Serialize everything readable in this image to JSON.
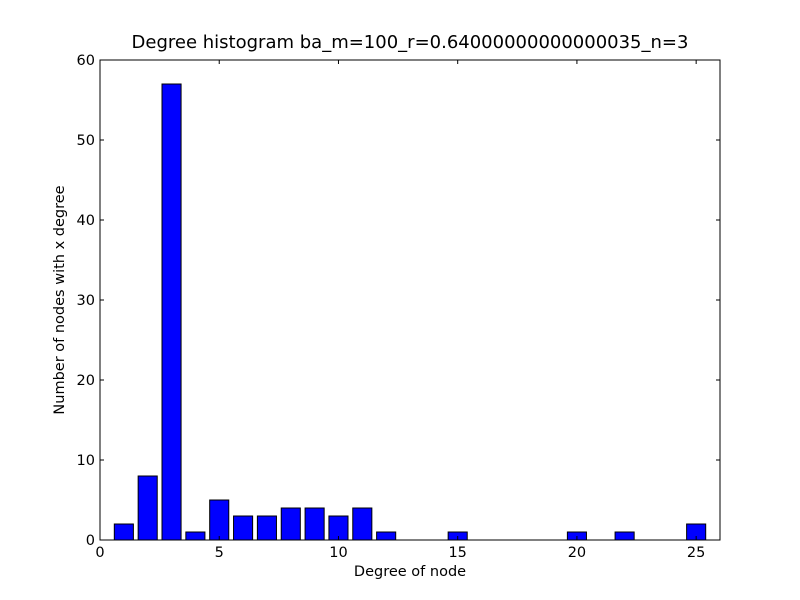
{
  "chart_data": {
    "type": "bar",
    "title": "Degree histogram ba_m=100_r=0.64000000000000035_n=3",
    "xlabel": "Degree of node",
    "ylabel": "Number of nodes with x degree",
    "xlim": [
      0,
      26
    ],
    "ylim": [
      0,
      60
    ],
    "xticks": [
      0,
      5,
      10,
      15,
      20,
      25
    ],
    "yticks": [
      0,
      10,
      20,
      30,
      40,
      50,
      60
    ],
    "x": [
      1,
      2,
      3,
      4,
      5,
      6,
      7,
      8,
      9,
      10,
      11,
      12,
      13,
      14,
      15,
      16,
      17,
      18,
      19,
      20,
      21,
      22,
      23,
      24,
      25
    ],
    "values": [
      2,
      8,
      57,
      1,
      5,
      3,
      3,
      4,
      4,
      3,
      4,
      1,
      0,
      0,
      1,
      0,
      0,
      0,
      0,
      1,
      0,
      1,
      0,
      0,
      2
    ],
    "bar_width": 0.8,
    "bar_color": "#0000ff",
    "edge_color": "#000000",
    "grid": false,
    "legend": false
  }
}
